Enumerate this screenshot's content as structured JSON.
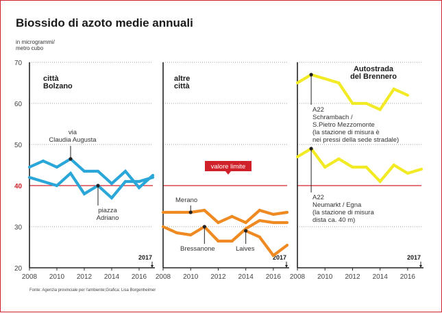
{
  "title": "Biossido di azoto medie annuali",
  "unit_label": [
    "in microgrammi/",
    "metro cubo"
  ],
  "limit_label": "valore limite",
  "last_year_label": "2017",
  "source": "Fonte: Agenzia provinciale per l'ambiente;Grafica: Lisa Borgenheimer",
  "colors": {
    "blue": "#2aa7d8",
    "orange": "#ef8a22",
    "yellow": "#f2ea24",
    "limit": "#d0212a",
    "axis": "#222222"
  },
  "chart_data": {
    "type": "line",
    "ylim": [
      20,
      70
    ],
    "y_ticks": [
      20,
      30,
      40,
      50,
      60,
      70
    ],
    "x_ticks": [
      2008,
      2010,
      2012,
      2014,
      2016
    ],
    "xlim": [
      2008,
      2017
    ],
    "limit_value": 40,
    "panels": [
      {
        "title": [
          "città",
          "Bolzano"
        ],
        "color": "blue",
        "series": [
          {
            "name": "via Claudia Augusta",
            "x": [
              2008,
              2009,
              2010,
              2011,
              2012,
              2013,
              2014,
              2015,
              2016,
              2017
            ],
            "values": [
              44.5,
              46,
              44.5,
              46.5,
              43.5,
              43.5,
              40.5,
              43.5,
              39.5,
              42.5
            ]
          },
          {
            "name": "piazza Adriano",
            "x": [
              2008,
              2009,
              2010,
              2011,
              2012,
              2013,
              2014,
              2015,
              2016,
              2017
            ],
            "values": [
              42,
              41,
              40,
              43,
              38,
              40,
              37,
              41,
              41,
              42
            ]
          }
        ],
        "annotations": [
          {
            "lines": [
              "via",
              "Claudia Augusta"
            ],
            "x": 2011,
            "y": 46.5
          },
          {
            "lines": [
              "piazza",
              "Adriano"
            ],
            "x": 2013,
            "y": 40
          }
        ]
      },
      {
        "title": [
          "altre",
          "città"
        ],
        "color": "orange",
        "series": [
          {
            "name": "Merano",
            "x": [
              2008,
              2009,
              2010,
              2011,
              2012,
              2013,
              2014,
              2015,
              2016,
              2017
            ],
            "values": [
              33.5,
              33.5,
              33.5,
              34,
              31,
              32.5,
              31,
              34,
              33,
              33.5
            ]
          },
          {
            "name": "Bressanone",
            "x": [
              2008,
              2009,
              2010,
              2011,
              2012,
              2013,
              2014,
              2015,
              2016,
              2017
            ],
            "values": [
              30,
              28.5,
              28,
              30,
              26.5,
              26.5,
              29.5,
              31.5,
              31,
              31
            ]
          },
          {
            "name": "Laives",
            "x": [
              2014,
              2015,
              2016,
              2017
            ],
            "values": [
              29,
              27.5,
              23,
              25.5
            ]
          }
        ],
        "annotations": [
          {
            "lines": [
              "Merano"
            ],
            "x": 2010,
            "y": 33.5
          },
          {
            "lines": [
              "Bressanone"
            ],
            "x": 2011,
            "y": 30
          },
          {
            "lines": [
              "Laives"
            ],
            "x": 2014,
            "y": 29
          }
        ]
      },
      {
        "title": [
          "Autostrada",
          "del Brennero"
        ],
        "color": "yellow",
        "series": [
          {
            "name": "A22 Schrambach / S.Pietro Mezzomonte",
            "x": [
              2008,
              2009,
              2010,
              2011,
              2012,
              2013,
              2014,
              2015,
              2016
            ],
            "values": [
              65,
              67,
              66,
              65,
              60,
              60,
              58.5,
              63.5,
              62
            ]
          },
          {
            "name": "A22 Neumarkt / Egna",
            "x": [
              2008,
              2009,
              2010,
              2011,
              2012,
              2013,
              2014,
              2015,
              2016,
              2017
            ],
            "values": [
              47,
              49,
              44.5,
              46.5,
              44.5,
              44.5,
              41,
              45,
              43,
              44
            ]
          }
        ],
        "annotations": [
          {
            "lines": [
              "A22",
              "Schrambach /",
              "S.Pietro Mezzomonte",
              "(la stazione di misura è",
              "nei pressi della sede stradale)"
            ],
            "x": 2009,
            "y": 67
          },
          {
            "lines": [
              "A22",
              "Neumarkt / Egna",
              "(la stazione di misura",
              "dista ca. 40 m)"
            ],
            "x": 2009,
            "y": 49
          }
        ]
      }
    ]
  }
}
